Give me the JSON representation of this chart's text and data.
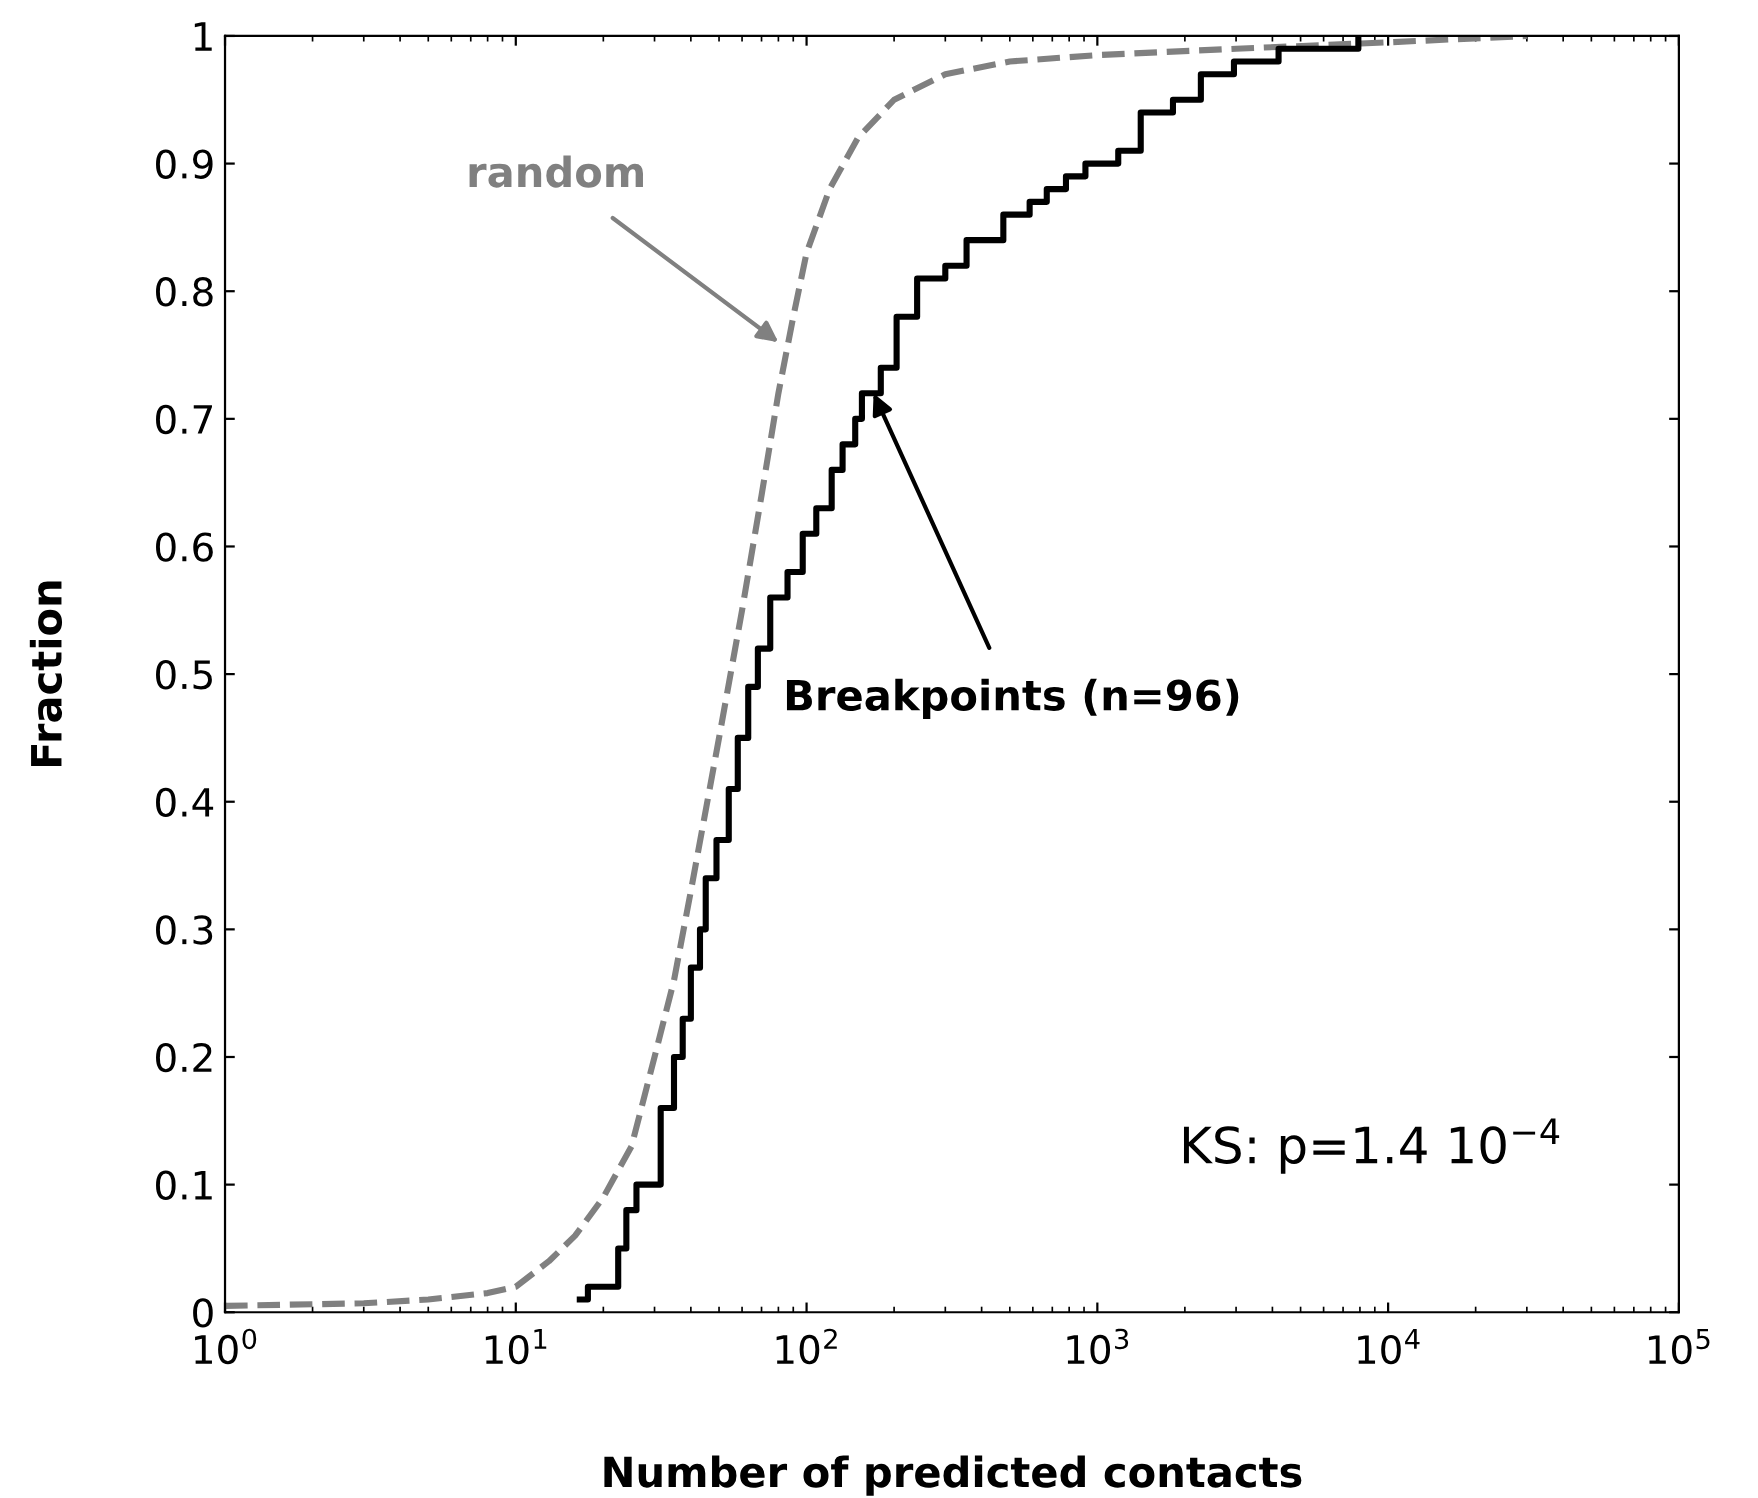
{
  "chart_data": {
    "type": "line",
    "xlabel": "Number of predicted contacts",
    "ylabel": "Fraction",
    "log": "x",
    "grid": false,
    "legend": false,
    "xlim": [
      1,
      100000
    ],
    "xticks": [
      {
        "value": 1,
        "label": "10$^{0}$"
      },
      {
        "value": 10,
        "label": "10$^{1}$"
      },
      {
        "value": 100,
        "label": "10$^{2}$"
      },
      {
        "value": 1000,
        "label": "10$^{3}$"
      },
      {
        "value": 10000,
        "label": "10$^{4}$"
      },
      {
        "value": 100000,
        "label": "10$^{5}$"
      }
    ],
    "ylim": [
      0,
      1
    ],
    "yticks": [
      0,
      0.1,
      0.2,
      0.3,
      0.4,
      0.5,
      0.6,
      0.7,
      0.8,
      0.9,
      1
    ],
    "series": [
      {
        "line_style": "dashed",
        "color": "#808080",
        "x": [
          1,
          3,
          5,
          8,
          10,
          13,
          16,
          20,
          25,
          30,
          35,
          40,
          50,
          60,
          70,
          80,
          90,
          100,
          120,
          150,
          200,
          300,
          500,
          1000,
          3000,
          10000,
          30000
        ],
        "values": [
          0.005,
          0.007,
          0.01,
          0.015,
          0.02,
          0.04,
          0.06,
          0.09,
          0.13,
          0.2,
          0.26,
          0.33,
          0.45,
          0.55,
          0.64,
          0.72,
          0.78,
          0.83,
          0.88,
          0.92,
          0.95,
          0.97,
          0.98,
          0.985,
          0.99,
          0.995,
          1.0
        ]
      },
      {
        "type": "step",
        "line_style": "solid",
        "color": "#000000",
        "x": [
          16.6,
          17.7,
          22.5,
          24,
          26,
          31.5,
          35,
          37.5,
          40,
          43,
          45,
          49,
          54,
          58,
          63,
          68,
          75,
          86,
          97,
          108,
          122,
          133,
          147,
          155,
          180,
          204,
          240,
          300,
          355,
          475,
          585,
          670,
          780,
          910,
          1180,
          1410,
          1820,
          2270,
          2950,
          4200,
          7900
        ],
        "values": [
          0.01,
          0.02,
          0.05,
          0.08,
          0.1,
          0.16,
          0.2,
          0.23,
          0.27,
          0.3,
          0.34,
          0.37,
          0.41,
          0.45,
          0.49,
          0.52,
          0.56,
          0.58,
          0.61,
          0.63,
          0.66,
          0.68,
          0.7,
          0.72,
          0.74,
          0.78,
          0.81,
          0.82,
          0.84,
          0.86,
          0.87,
          0.88,
          0.89,
          0.9,
          0.91,
          0.94,
          0.95,
          0.97,
          0.98,
          0.99,
          1.0
        ]
      }
    ],
    "annotations": [
      {
        "text": "random",
        "x": 80,
        "y": 0.76
      },
      {
        "text": "Breakpoints (n=96)",
        "x": 170,
        "y": 0.72
      },
      "KS: p=1.4 10$^{−4}$"
    ]
  }
}
